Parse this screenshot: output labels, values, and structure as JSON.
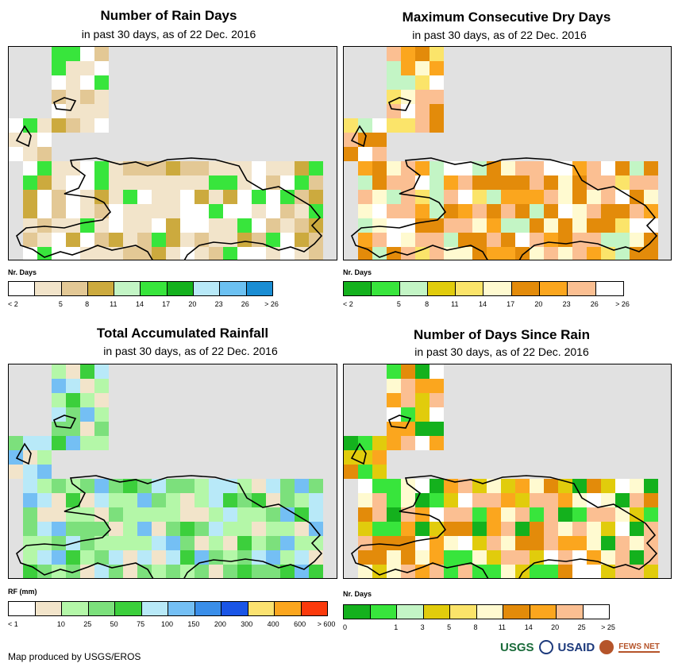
{
  "panels": [
    {
      "title": "Number of Rain Days",
      "subtitle": "in past 30 days, as of 22 Dec. 2016",
      "legend_title": "Nr. Days",
      "legend_colors": [
        "#ffffff",
        "#f2e4ca",
        "#e3c895",
        "#ccaa3e",
        "#c3f5c5",
        "#38e53c",
        "#14b11d",
        "#b8e9f8",
        "#6cc1f2",
        "#1a8dd3"
      ],
      "legend_labels": [
        "< 2",
        "5",
        "8",
        "11",
        "14",
        "17",
        "20",
        "23",
        "26",
        "> 26"
      ]
    },
    {
      "title": "Maximum Consecutive Dry Days",
      "subtitle": "in past 30 days, as of 22 Dec. 2016",
      "legend_title": "Nr. Days",
      "legend_colors": [
        "#14b11d",
        "#38e53c",
        "#c3f5c5",
        "#e1cc0c",
        "#fbe46a",
        "#fffad0",
        "#e38b0a",
        "#fba61e",
        "#fbbf92",
        "#ffffff"
      ],
      "legend_labels": [
        "< 2",
        "5",
        "8",
        "11",
        "14",
        "17",
        "20",
        "23",
        "26",
        "> 26"
      ]
    },
    {
      "title": "Total Accumulated Rainfall",
      "subtitle": "in past 30 days, as of 22 Dec. 2016",
      "legend_title": "RF (mm)",
      "legend_colors": [
        "#ffffff",
        "#f2e4ca",
        "#b4f7a8",
        "#7ce07c",
        "#3ccf3c",
        "#b8e9f8",
        "#74bff4",
        "#3a8ee9",
        "#1a55e6",
        "#fbe270",
        "#fba61e",
        "#fb3a0c"
      ],
      "legend_labels": [
        "< 1",
        "10",
        "25",
        "50",
        "75",
        "100",
        "150",
        "200",
        "300",
        "400",
        "600",
        "> 600"
      ]
    },
    {
      "title": "Number of Days Since Rain",
      "subtitle": "in past 30 days, as of 22 Dec. 2016",
      "legend_title": "Nr. Days",
      "legend_colors": [
        "#14b11d",
        "#38e53c",
        "#c3f5c5",
        "#e1cc0c",
        "#fbe46a",
        "#fffad0",
        "#e38b0a",
        "#fba61e",
        "#fbbf92",
        "#ffffff"
      ],
      "legend_labels": [
        "0",
        "1",
        "3",
        "5",
        "8",
        "11",
        "14",
        "20",
        "25",
        "> 25"
      ]
    }
  ],
  "footer": "Map produced by USGS/EROS",
  "logos": {
    "usgs": "USGS",
    "usaid": "USAID",
    "fews": "FEWS NET"
  }
}
